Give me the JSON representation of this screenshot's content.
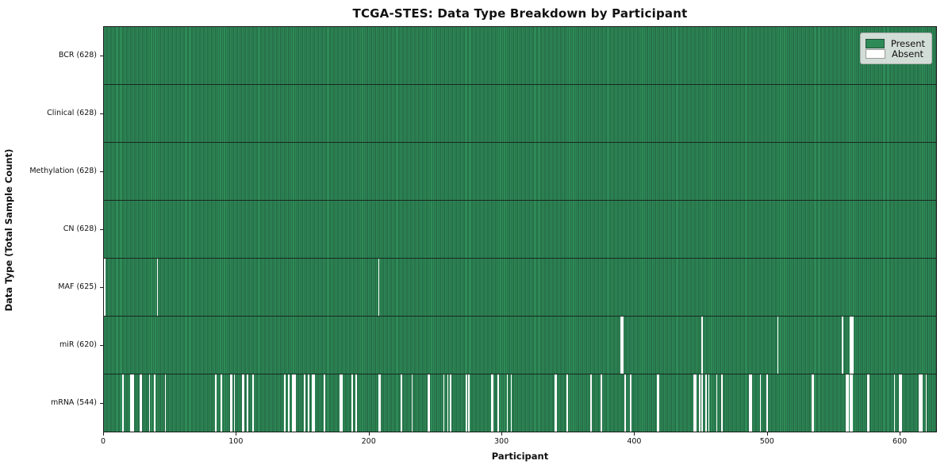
{
  "title": "TCGA-STES: Data Type Breakdown by Participant",
  "xlabel": "Participant",
  "ylabel": "Data Type (Total Sample Count)",
  "legend": {
    "present_label": "Present",
    "absent_label": "Absent"
  },
  "colors": {
    "present": "#2E8B57",
    "bar_edge": "#20563b",
    "absent": "#ffffff",
    "row_divider": "#17281f",
    "spine": "#1c1c1c",
    "legend_bg": "rgba(234,234,234,0.88)",
    "legend_border": "#b0b0b0"
  },
  "chart_data": {
    "type": "heatmap",
    "title": "TCGA-STES: Data Type Breakdown by Participant",
    "xlabel": "Participant",
    "ylabel": "Data Type (Total Sample Count)",
    "legend_position": "upper right",
    "legend_entries": [
      {
        "label": "Present",
        "color": "#2E8B57"
      },
      {
        "label": "Absent",
        "color": "#ffffff"
      }
    ],
    "total_participants": 628,
    "xlim": [
      0,
      628
    ],
    "x_ticks": [
      0,
      100,
      200,
      300,
      400,
      500,
      600
    ],
    "rows": [
      {
        "name": "BCR",
        "label": "BCR (628)",
        "present_count": 628,
        "absent_participants": []
      },
      {
        "name": "Clinical",
        "label": "Clinical (628)",
        "present_count": 628,
        "absent_participants": []
      },
      {
        "name": "Methylation",
        "label": "Methylation (628)",
        "present_count": 628,
        "absent_participants": []
      },
      {
        "name": "CN",
        "label": "CN (628)",
        "present_count": 628,
        "absent_participants": []
      },
      {
        "name": "MAF",
        "label": "MAF (625)",
        "present_count": 625,
        "absent_participants": [
          0,
          40,
          207
        ]
      },
      {
        "name": "miR",
        "label": "miR (620)",
        "present_count": 620,
        "absent_participants": [
          390,
          391,
          451,
          508,
          557,
          563,
          564,
          565
        ]
      },
      {
        "name": "mRNA",
        "label": "mRNA (544)",
        "present_count": 544,
        "absent_participants": [
          14,
          20,
          21,
          22,
          27,
          28,
          34,
          38,
          46,
          84,
          88,
          95,
          96,
          98,
          104,
          105,
          108,
          112,
          136,
          139,
          142,
          143,
          144,
          151,
          154,
          157,
          158,
          166,
          178,
          179,
          187,
          190,
          207,
          208,
          224,
          232,
          244,
          245,
          256,
          259,
          261,
          273,
          275,
          292,
          293,
          297,
          304,
          307,
          340,
          341,
          349,
          367,
          375,
          393,
          397,
          417,
          418,
          445,
          446,
          449,
          451,
          454,
          456,
          462,
          466,
          487,
          488,
          495,
          500,
          534,
          535,
          560,
          561,
          563,
          564,
          576,
          577,
          596,
          600,
          601,
          615,
          616,
          617,
          620
        ]
      }
    ]
  }
}
